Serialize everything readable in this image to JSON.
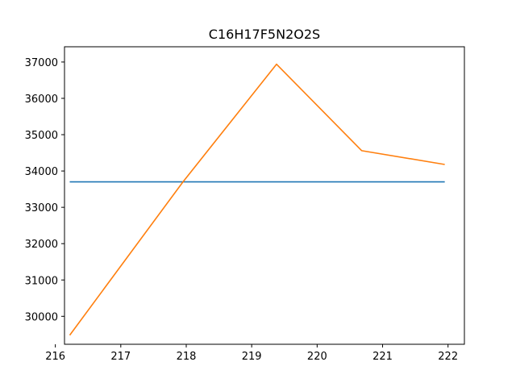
{
  "chart_data": {
    "type": "line",
    "title": "C16H17F5N2O2S",
    "xlabel": "",
    "ylabel": "",
    "xlim": [
      216.14,
      222.25
    ],
    "ylim": [
      29230,
      37420
    ],
    "grid": false,
    "legend": "none",
    "x_ticks": [
      216,
      217,
      218,
      219,
      220,
      221,
      222
    ],
    "y_ticks": [
      30000,
      31000,
      32000,
      33000,
      34000,
      35000,
      36000,
      37000
    ],
    "series": [
      {
        "color": "#1f77b4",
        "x": [
          216.22,
          221.95
        ],
        "y": [
          33700,
          33700
        ]
      },
      {
        "color": "#ff7f0e",
        "x": [
          216.22,
          217.95,
          219.38,
          220.68,
          221.95
        ],
        "y": [
          29480,
          33700,
          36940,
          34560,
          34180
        ]
      }
    ]
  }
}
